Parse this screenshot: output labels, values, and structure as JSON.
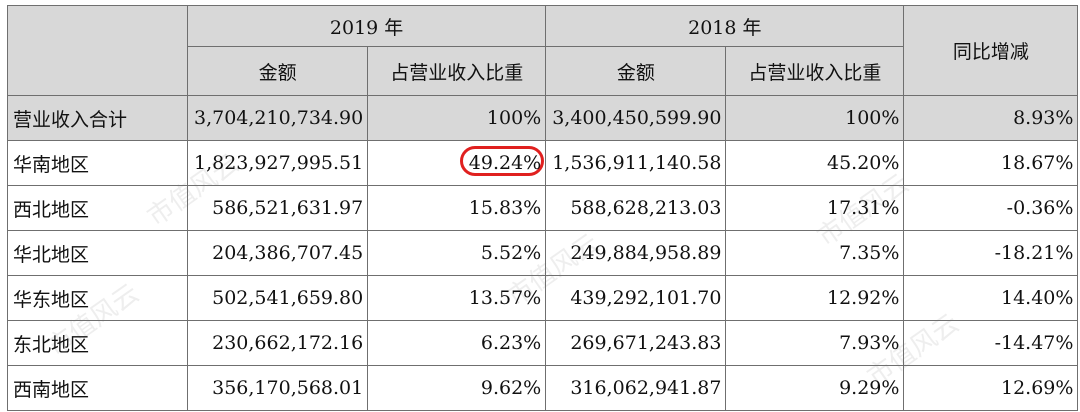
{
  "header": {
    "year_2019": "2019 年",
    "year_2018": "2018 年",
    "yoy": "同比增减",
    "amount": "金额",
    "share": "占营业收入比重"
  },
  "rows": [
    {
      "region": "营业收入合计",
      "amt2019": "3,704,210,734.90",
      "pct2019": "100%",
      "amt2018": "3,400,450,599.90",
      "pct2018": "100%",
      "yoy": "8.93%"
    },
    {
      "region": "华南地区",
      "amt2019": "1,823,927,995.51",
      "pct2019": "49.24%",
      "amt2018": "1,536,911,140.58",
      "pct2018": "45.20%",
      "yoy": "18.67%"
    },
    {
      "region": "西北地区",
      "amt2019": "586,521,631.97",
      "pct2019": "15.83%",
      "amt2018": "588,628,213.03",
      "pct2018": "17.31%",
      "yoy": "-0.36%"
    },
    {
      "region": "华北地区",
      "amt2019": "204,386,707.45",
      "pct2019": "5.52%",
      "amt2018": "249,884,958.89",
      "pct2018": "7.35%",
      "yoy": "-18.21%"
    },
    {
      "region": "华东地区",
      "amt2019": "502,541,659.80",
      "pct2019": "13.57%",
      "amt2018": "439,292,101.70",
      "pct2018": "12.92%",
      "yoy": "14.40%"
    },
    {
      "region": "东北地区",
      "amt2019": "230,662,172.16",
      "pct2019": "6.23%",
      "amt2018": "269,671,243.83",
      "pct2018": "7.93%",
      "yoy": "-14.47%"
    },
    {
      "region": "西南地区",
      "amt2019": "356,170,568.01",
      "pct2019": "9.62%",
      "amt2018": "316,062,941.87",
      "pct2018": "9.29%",
      "yoy": "12.69%"
    }
  ],
  "watermark": "市值风云",
  "highlight_color": "#e0201f"
}
